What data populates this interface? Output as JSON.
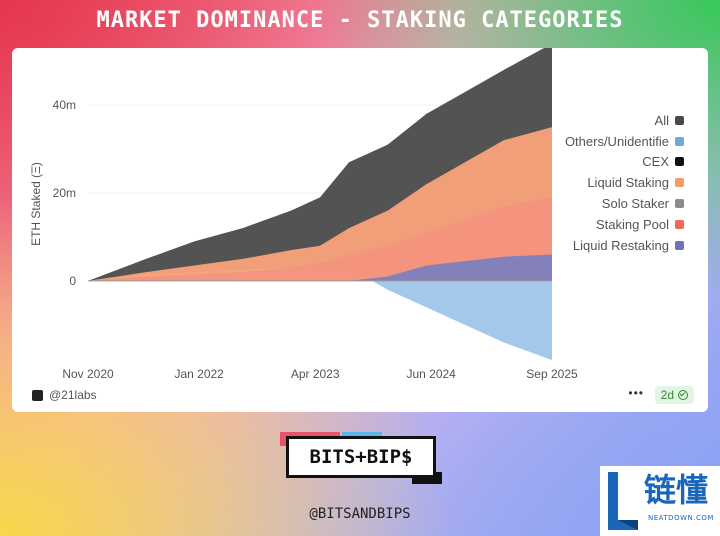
{
  "header": {
    "title": "MARKET DOMINANCE - STAKING CATEGORIES"
  },
  "chart_data": {
    "type": "area",
    "ylabel": "ETH Staked (Ξ)",
    "xlabel": "",
    "x_tick_labels": [
      "Nov 2020",
      "Jan 2022",
      "Apr 2023",
      "Jun 2024",
      "Sep 2025"
    ],
    "y_tick_labels": [
      "40m",
      "20m",
      "0"
    ],
    "y_ticks": [
      40,
      20,
      0
    ],
    "ylim": [
      -18,
      53
    ],
    "y_unit": "million ETH",
    "x": [
      2020.9,
      2021.5,
      2022.0,
      2022.5,
      2023.0,
      2023.3,
      2023.6,
      2024.0,
      2024.4,
      2024.8,
      2025.2,
      2025.7
    ],
    "x_ticks": [
      2020.9,
      2022.05,
      2023.25,
      2024.45,
      2025.7
    ],
    "legend_position": "right",
    "legend": [
      {
        "name": "All",
        "color": "#4a4a4a"
      },
      {
        "name": "Others/Unidentifie",
        "color": "#6fa8dc"
      },
      {
        "name": "CEX",
        "color": "#111111"
      },
      {
        "name": "Liquid Staking",
        "color": "#f79a6a"
      },
      {
        "name": "Solo Staker",
        "color": "#8c8c8c"
      },
      {
        "name": "Staking Pool",
        "color": "#ee6b5a"
      },
      {
        "name": "Liquid Restaking",
        "color": "#6f73b4"
      }
    ],
    "series": [
      {
        "name": "All",
        "color": "#4a4a4a",
        "values": [
          0,
          5,
          9,
          12,
          16,
          19,
          27,
          31,
          38,
          43,
          48,
          54
        ]
      },
      {
        "name": "Others/Unidentifie",
        "color": "#9fc5e8",
        "values": [
          0,
          1.5,
          2.0,
          2.5,
          3,
          3.5,
          3,
          -2,
          -6,
          -10,
          -14,
          -18
        ]
      },
      {
        "name": "Liquid Staking",
        "color": "#f9a37a",
        "values": [
          0,
          2,
          3.5,
          5,
          7,
          8,
          12,
          16,
          22,
          27,
          32,
          35
        ]
      },
      {
        "name": "Staking Pool",
        "color": "#f3937e",
        "values": [
          0,
          1,
          1.5,
          2,
          3,
          4,
          6,
          8,
          11,
          14,
          17,
          19
        ]
      },
      {
        "name": "Liquid Restaking",
        "color": "#7d7fbe",
        "values": [
          0,
          0,
          0,
          0,
          0,
          0,
          0,
          1,
          3.5,
          4.5,
          5.5,
          6
        ]
      }
    ]
  },
  "footer": {
    "source": "@21labs",
    "more": "•••",
    "period_badge": "2d"
  },
  "brand": {
    "logo_text": "BITS+BIP$",
    "handle": "@BITSANDBIPS"
  },
  "partner": {
    "name": "链懂",
    "sub": "NEATDOWN.COM"
  }
}
